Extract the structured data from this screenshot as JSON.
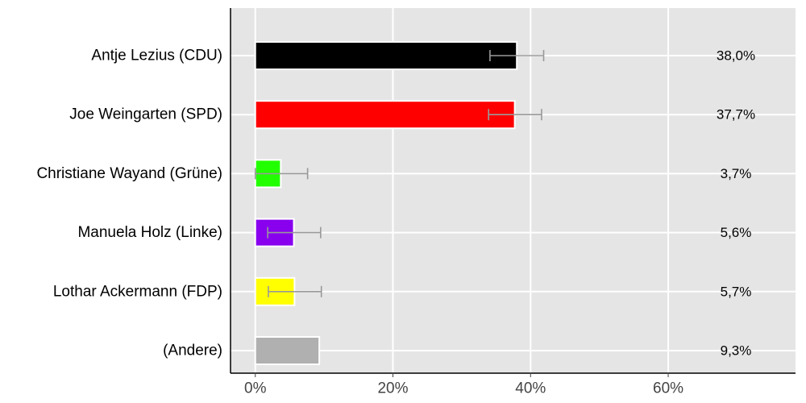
{
  "chart_data": {
    "type": "bar",
    "orientation": "horizontal",
    "categories": [
      "Antje Lezius (CDU)",
      "Joe Weingarten (SPD)",
      "Christiane Wayand (Grüne)",
      "Manuela Holz (Linke)",
      "Lothar Ackermann (FDP)",
      "(Andere)"
    ],
    "values": [
      38.0,
      37.7,
      3.7,
      5.6,
      5.7,
      9.3
    ],
    "value_labels": [
      "38,0%",
      "37,7%",
      "3,7%",
      "5,6%",
      "5,7%",
      "9,3%"
    ],
    "colors": [
      "#000000",
      "#ff0000",
      "#22ff00",
      "#8800ee",
      "#ffff00",
      "#b0b0b0"
    ],
    "error_bars": [
      {
        "low": 34.1,
        "high": 41.9
      },
      {
        "low": 33.9,
        "high": 41.6
      },
      {
        "low": 0.0,
        "high": 7.6
      },
      {
        "low": 1.8,
        "high": 9.5
      },
      {
        "low": 1.9,
        "high": 9.6
      },
      null
    ],
    "xticks": [
      0,
      20,
      40,
      60
    ],
    "xtick_labels": [
      "0%",
      "20%",
      "40%",
      "60%"
    ],
    "xlim": [
      -3.6,
      78.5
    ],
    "grid": true,
    "background": "#e5e5e5",
    "error_bar_color": "#999999",
    "title": "",
    "xlabel": "",
    "ylabel": ""
  }
}
